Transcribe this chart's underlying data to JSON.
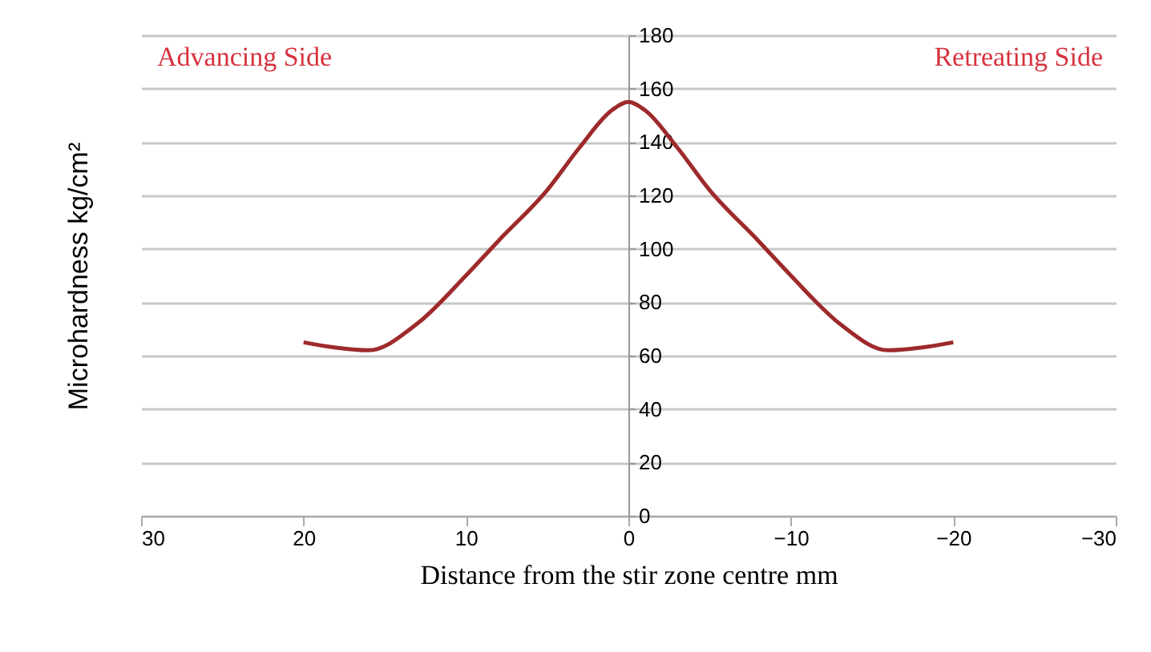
{
  "chart_data": {
    "type": "line",
    "x": [
      20,
      18,
      16,
      13,
      10,
      8,
      5,
      3,
      1,
      0,
      -1,
      -3,
      -5,
      -8,
      -10,
      -13,
      -16,
      -18,
      -20
    ],
    "series": [
      {
        "color": "#9e2a2b",
        "values": [
          65,
          63,
          62,
          72,
          90,
          103,
          122,
          138,
          152,
          155,
          152,
          138,
          122,
          103,
          90,
          72,
          62,
          63,
          65
        ]
      }
    ],
    "xlim": [
      30,
      -30
    ],
    "xticks": [
      30,
      20,
      10,
      0,
      -10,
      -20,
      -30
    ],
    "ylim": [
      0,
      180
    ],
    "yticks": [
      0,
      20,
      40,
      60,
      80,
      100,
      120,
      140,
      160,
      180
    ],
    "xlabel": "Distance from the stir zone centre mm",
    "ylabel": "Microhardness kg/cm²",
    "annotations": [
      "Advancing Side",
      "Retreating Side"
    ],
    "grid": "y",
    "marker": "none",
    "line_style": "solid"
  }
}
